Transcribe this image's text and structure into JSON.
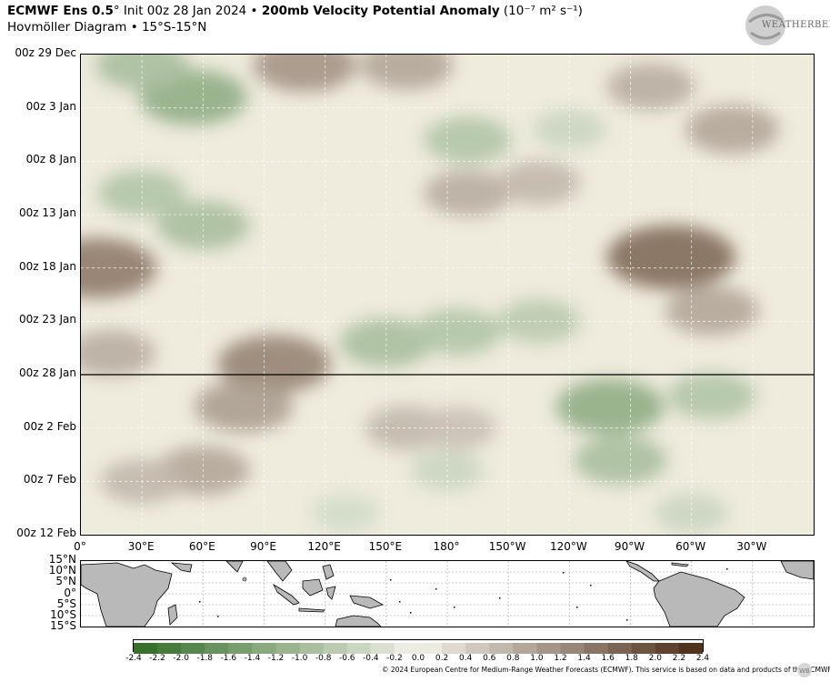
{
  "header": {
    "title_bold_a": "ECMWF Ens 0.5",
    "title_deg": "°",
    "title_init": " Init 00z 28 Jan 2024 • ",
    "title_bold_b": "200mb Velocity Potential Anomaly",
    "title_units": " (10⁻⁷ m² s⁻¹)",
    "subtitle": "Hovmöller Diagram • 15°S-15°N"
  },
  "logo": {
    "text": "WEATHERBELL"
  },
  "chart_data": {
    "type": "heatmap",
    "title": "200mb Velocity Potential Anomaly",
    "x_axis": {
      "ticks": [
        "0°",
        "30°E",
        "60°E",
        "90°E",
        "120°E",
        "150°E",
        "180°",
        "150°W",
        "120°W",
        "90°W",
        "60°W",
        "30°W"
      ],
      "range": [
        0,
        360
      ]
    },
    "y_axis": {
      "ticks": [
        "00z 29 Dec",
        "00z 3 Jan",
        "00z 8 Jan",
        "00z 13 Jan",
        "00z 18 Jan",
        "00z 23 Jan",
        "00z 28 Jan",
        "00z 2 Feb",
        "00z 7 Feb",
        "00z 12 Feb"
      ],
      "range_days": [
        0,
        45
      ]
    },
    "init_line": "00z 28 Jan",
    "colorbar": {
      "ticks": [
        "-2.4",
        "-2.2",
        "-2.0",
        "-1.8",
        "-1.6",
        "-1.4",
        "-1.2",
        "-1.0",
        "-0.8",
        "-0.6",
        "-0.4",
        "-0.2",
        "0.0",
        "0.2",
        "0.4",
        "0.6",
        "0.8",
        "1.0",
        "1.2",
        "1.4",
        "1.6",
        "1.8",
        "2.0",
        "2.2",
        "2.4"
      ],
      "range": [
        -2.4,
        2.4
      ],
      "negative_color": "#2f6b24",
      "zero_color": "#f4f2ea",
      "positive_color": "#4a2a14"
    },
    "features": [
      {
        "lon": 55,
        "day": 4,
        "value": -1.2
      },
      {
        "lon": 30,
        "day": 1,
        "value": -0.9
      },
      {
        "lon": 60,
        "day": 16,
        "value": -0.9
      },
      {
        "lon": 30,
        "day": 13,
        "value": -0.8
      },
      {
        "lon": 150,
        "day": 27,
        "value": -0.9
      },
      {
        "lon": 185,
        "day": 26,
        "value": -0.8
      },
      {
        "lon": 225,
        "day": 25,
        "value": -0.7
      },
      {
        "lon": 190,
        "day": 8,
        "value": -0.8
      },
      {
        "lon": 240,
        "day": 7,
        "value": -0.5
      },
      {
        "lon": 260,
        "day": 33,
        "value": -1.2
      },
      {
        "lon": 265,
        "day": 38,
        "value": -0.9
      },
      {
        "lon": 310,
        "day": 32,
        "value": -0.8
      },
      {
        "lon": 300,
        "day": 43,
        "value": -0.5
      },
      {
        "lon": 180,
        "day": 39,
        "value": -0.5
      },
      {
        "lon": 130,
        "day": 43,
        "value": -0.4
      },
      {
        "lon": 95,
        "day": 29,
        "value": 1.3
      },
      {
        "lon": 80,
        "day": 33,
        "value": 1.0
      },
      {
        "lon": 60,
        "day": 39,
        "value": 0.9
      },
      {
        "lon": 30,
        "day": 40,
        "value": 0.7
      },
      {
        "lon": 8,
        "day": 20,
        "value": 1.4
      },
      {
        "lon": 15,
        "day": 28,
        "value": 0.8
      },
      {
        "lon": 110,
        "day": 1,
        "value": 1.1
      },
      {
        "lon": 160,
        "day": 1,
        "value": 0.9
      },
      {
        "lon": 190,
        "day": 13,
        "value": 0.8
      },
      {
        "lon": 225,
        "day": 12,
        "value": 0.7
      },
      {
        "lon": 290,
        "day": 19,
        "value": 1.6
      },
      {
        "lon": 310,
        "day": 24,
        "value": 0.9
      },
      {
        "lon": 320,
        "day": 7,
        "value": 0.9
      },
      {
        "lon": 280,
        "day": 3,
        "value": 0.8
      },
      {
        "lon": 160,
        "day": 35,
        "value": 0.7
      },
      {
        "lon": 185,
        "day": 35,
        "value": 0.6
      }
    ]
  },
  "map": {
    "lat_ticks": [
      "15°N",
      "10°N",
      "5°N",
      "0°",
      "5°S",
      "10°S",
      "15°S"
    ]
  },
  "footer": {
    "copyright": "© 2024 European Centre for Medium-Range Weather Forecasts (ECMWF). This service is based on data and products of the ECMWF.",
    "wb_mark": "WB"
  }
}
